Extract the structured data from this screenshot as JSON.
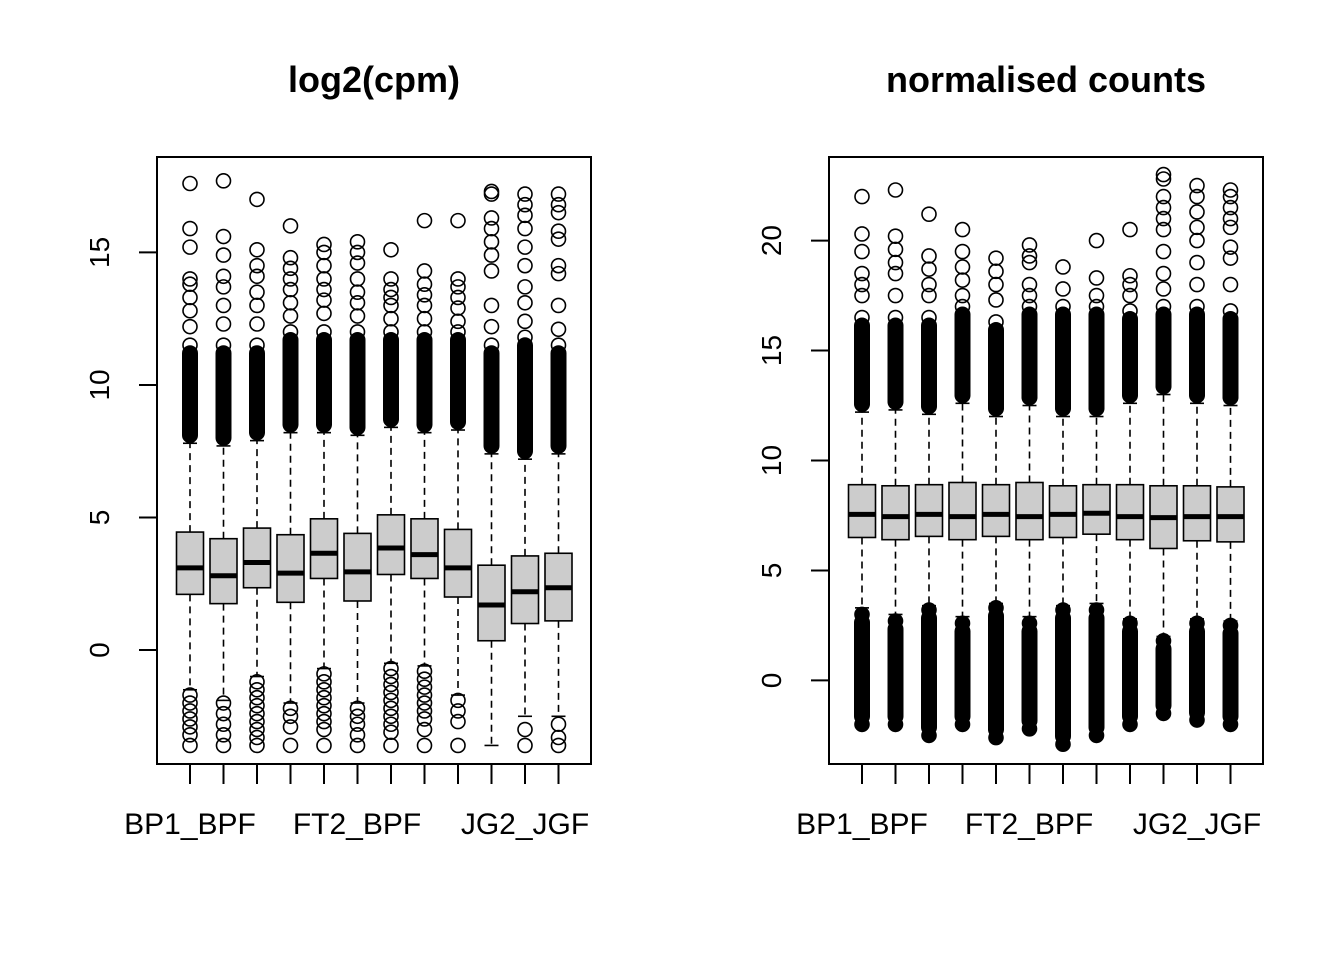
{
  "chart_data": [
    {
      "type": "boxplot",
      "title": "log2(cpm)",
      "xlabel": "",
      "ylabel": "",
      "ylim": [
        -4.3,
        18.6
      ],
      "yticks": [
        0,
        5,
        10,
        15
      ],
      "categories_shown": [
        "BP1_BPF",
        "FT2_BPF",
        "JG2_JGF"
      ],
      "n_boxes": 12,
      "boxes": [
        {
          "lower_whisker": -1.5,
          "q1": 2.1,
          "median": 3.1,
          "q3": 4.45,
          "upper_whisker": 7.8,
          "outliers_high": [
            8.5,
            9.5,
            10.5,
            11.5,
            12.2,
            12.8,
            13.3,
            13.8,
            14.0,
            15.2,
            15.9,
            17.6
          ],
          "outliers_low": [
            -1.7,
            -2.0,
            -2.3,
            -2.6,
            -2.9,
            -3.2,
            -3.6
          ]
        },
        {
          "lower_whisker": -1.9,
          "q1": 1.75,
          "median": 2.8,
          "q3": 4.2,
          "upper_whisker": 7.7,
          "outliers_high": [
            8.5,
            9.5,
            10.5,
            11.5,
            12.3,
            13.0,
            13.7,
            14.1,
            14.9,
            15.6,
            17.7
          ],
          "outliers_low": [
            -2.0,
            -2.4,
            -2.8,
            -3.2,
            -3.6
          ]
        },
        {
          "lower_whisker": -1.0,
          "q1": 2.35,
          "median": 3.3,
          "q3": 4.6,
          "upper_whisker": 7.9,
          "outliers_high": [
            8.5,
            9.5,
            10.5,
            11.5,
            12.3,
            13.0,
            13.5,
            14.1,
            14.5,
            15.1,
            17.0
          ],
          "outliers_low": [
            -1.2,
            -1.5,
            -1.8,
            -2.1,
            -2.4,
            -2.7,
            -3.0,
            -3.3,
            -3.6
          ]
        },
        {
          "lower_whisker": -2.0,
          "q1": 1.8,
          "median": 2.9,
          "q3": 4.35,
          "upper_whisker": 8.2,
          "outliers_high": [
            9.0,
            10.0,
            11.0,
            12.0,
            12.6,
            13.1,
            13.6,
            14.0,
            14.4,
            14.8,
            16.0
          ],
          "outliers_low": [
            -2.2,
            -2.5,
            -2.9,
            -3.6
          ]
        },
        {
          "lower_whisker": -0.7,
          "q1": 2.7,
          "median": 3.65,
          "q3": 4.95,
          "upper_whisker": 8.2,
          "outliers_high": [
            9.0,
            10.0,
            11.0,
            12.0,
            12.7,
            13.2,
            13.6,
            14.0,
            14.5,
            15.0,
            15.3
          ],
          "outliers_low": [
            -0.9,
            -1.2,
            -1.5,
            -1.8,
            -2.1,
            -2.4,
            -2.7,
            -3.0,
            -3.6
          ]
        },
        {
          "lower_whisker": -2.0,
          "q1": 1.85,
          "median": 2.95,
          "q3": 4.4,
          "upper_whisker": 8.1,
          "outliers_high": [
            9.0,
            10.0,
            11.0,
            12.0,
            12.6,
            13.1,
            13.5,
            14.0,
            14.6,
            15.0,
            15.4
          ],
          "outliers_low": [
            -2.2,
            -2.5,
            -2.8,
            -3.2,
            -3.6
          ]
        },
        {
          "lower_whisker": -0.5,
          "q1": 2.85,
          "median": 3.85,
          "q3": 5.1,
          "upper_whisker": 8.4,
          "outliers_high": [
            9.0,
            10.0,
            11.0,
            12.0,
            12.5,
            13.0,
            13.3,
            13.6,
            14.0,
            15.1
          ],
          "outliers_low": [
            -0.7,
            -1.0,
            -1.3,
            -1.6,
            -1.9,
            -2.2,
            -2.5,
            -2.8,
            -3.1,
            -3.6
          ]
        },
        {
          "lower_whisker": -0.6,
          "q1": 2.7,
          "median": 3.6,
          "q3": 4.95,
          "upper_whisker": 8.2,
          "outliers_high": [
            9.0,
            10.0,
            11.0,
            12.0,
            12.5,
            13.0,
            13.4,
            13.8,
            14.3,
            16.2
          ],
          "outliers_low": [
            -0.8,
            -1.1,
            -1.4,
            -1.7,
            -2.0,
            -2.3,
            -2.6,
            -3.0,
            -3.6
          ]
        },
        {
          "lower_whisker": -1.7,
          "q1": 2.0,
          "median": 3.1,
          "q3": 4.55,
          "upper_whisker": 8.3,
          "outliers_high": [
            9.0,
            10.0,
            11.0,
            12.0,
            12.4,
            12.9,
            13.3,
            13.7,
            14.0,
            16.2
          ],
          "outliers_low": [
            -1.9,
            -2.3,
            -2.7,
            -3.6
          ]
        },
        {
          "lower_whisker": -3.6,
          "q1": 0.35,
          "median": 1.7,
          "q3": 3.2,
          "upper_whisker": 7.4,
          "outliers_high": [
            8.0,
            9.0,
            10.0,
            11.0,
            11.5,
            12.2,
            13.0,
            14.3,
            14.9,
            15.4,
            15.9,
            16.3,
            17.2,
            17.3
          ],
          "outliers_low": []
        },
        {
          "lower_whisker": -2.5,
          "q1": 1.0,
          "median": 2.2,
          "q3": 3.55,
          "upper_whisker": 7.2,
          "outliers_high": [
            8.0,
            9.0,
            10.0,
            11.0,
            11.8,
            12.4,
            13.1,
            13.7,
            14.5,
            15.2,
            15.9,
            16.4,
            16.8,
            17.2
          ],
          "outliers_low": [
            -3.0,
            -3.6
          ]
        },
        {
          "lower_whisker": -2.5,
          "q1": 1.1,
          "median": 2.35,
          "q3": 3.65,
          "upper_whisker": 7.4,
          "outliers_high": [
            8.0,
            9.0,
            10.0,
            11.0,
            11.5,
            12.1,
            13.0,
            14.2,
            14.5,
            15.5,
            15.8,
            16.5,
            16.8,
            17.2
          ],
          "outliers_low": [
            -2.8,
            -3.3,
            -3.6
          ]
        }
      ]
    },
    {
      "type": "boxplot",
      "title": "normalised counts",
      "xlabel": "",
      "ylabel": "",
      "ylim": [
        -3.8,
        23.8
      ],
      "yticks": [
        0,
        5,
        10,
        15,
        20
      ],
      "categories_shown": [
        "BP1_BPF",
        "FT2_BPF",
        "JG2_JGF"
      ],
      "n_boxes": 12,
      "boxes": [
        {
          "lower_whisker": 3.3,
          "q1": 6.5,
          "median": 7.55,
          "q3": 8.9,
          "upper_whisker": 12.2,
          "outliers_high": [
            12.6,
            13.5,
            14.5,
            15.5,
            16.5,
            17.5,
            18.0,
            18.5,
            19.5,
            20.3,
            22.0
          ],
          "outliers_low": [
            3.0,
            2.0,
            1.0,
            0.0,
            -1.0,
            -2.0
          ]
        },
        {
          "lower_whisker": 3.0,
          "q1": 6.4,
          "median": 7.45,
          "q3": 8.85,
          "upper_whisker": 12.3,
          "outliers_high": [
            12.7,
            13.5,
            14.5,
            15.5,
            16.5,
            17.5,
            18.5,
            19.0,
            19.6,
            20.2,
            22.3
          ],
          "outliers_low": [
            2.7,
            1.5,
            0.5,
            -0.5,
            -1.5,
            -2.0
          ]
        },
        {
          "lower_whisker": 3.4,
          "q1": 6.55,
          "median": 7.55,
          "q3": 8.9,
          "upper_whisker": 12.1,
          "outliers_high": [
            12.5,
            13.5,
            14.5,
            15.5,
            16.5,
            17.5,
            18.0,
            18.7,
            19.3,
            21.2
          ],
          "outliers_low": [
            3.2,
            2.0,
            1.0,
            0.0,
            -1.0,
            -2.0,
            -2.5
          ]
        },
        {
          "lower_whisker": 2.9,
          "q1": 6.4,
          "median": 7.45,
          "q3": 9.0,
          "upper_whisker": 12.6,
          "outliers_high": [
            13.0,
            14.0,
            15.0,
            16.0,
            17.0,
            17.5,
            18.2,
            18.8,
            19.5,
            20.5
          ],
          "outliers_low": [
            2.6,
            1.5,
            0.5,
            -0.5,
            -1.5,
            -2.0
          ]
        },
        {
          "lower_whisker": 3.5,
          "q1": 6.55,
          "median": 7.55,
          "q3": 8.9,
          "upper_whisker": 12.0,
          "outliers_high": [
            12.4,
            13.3,
            14.3,
            15.3,
            16.3,
            17.3,
            18.0,
            18.6,
            19.2
          ],
          "outliers_low": [
            3.3,
            2.0,
            1.0,
            0.0,
            -1.0,
            -2.0,
            -2.6
          ]
        },
        {
          "lower_whisker": 2.9,
          "q1": 6.4,
          "median": 7.45,
          "q3": 9.0,
          "upper_whisker": 12.5,
          "outliers_high": [
            12.9,
            14.0,
            15.0,
            16.0,
            17.0,
            17.5,
            18.0,
            19.0,
            19.3,
            19.8
          ],
          "outliers_low": [
            2.6,
            1.5,
            0.5,
            -0.5,
            -1.5,
            -2.2
          ]
        },
        {
          "lower_whisker": 3.4,
          "q1": 6.5,
          "median": 7.55,
          "q3": 8.85,
          "upper_whisker": 12.0,
          "outliers_high": [
            12.4,
            13.3,
            14.3,
            15.3,
            16.3,
            17.0,
            17.8,
            18.8
          ],
          "outliers_low": [
            3.2,
            2.0,
            1.0,
            0.0,
            -1.0,
            -2.0,
            -2.9
          ]
        },
        {
          "lower_whisker": 3.5,
          "q1": 6.65,
          "median": 7.6,
          "q3": 8.9,
          "upper_whisker": 12.0,
          "outliers_high": [
            12.4,
            13.3,
            14.3,
            15.3,
            16.3,
            17.0,
            17.5,
            18.3,
            20.0
          ],
          "outliers_low": [
            3.2,
            2.0,
            1.0,
            0.0,
            -1.0,
            -2.0,
            -2.5
          ]
        },
        {
          "lower_whisker": 2.8,
          "q1": 6.4,
          "median": 7.45,
          "q3": 8.9,
          "upper_whisker": 12.6,
          "outliers_high": [
            13.0,
            14.0,
            15.0,
            16.0,
            16.8,
            17.5,
            18.0,
            18.4,
            20.5
          ],
          "outliers_low": [
            2.6,
            1.5,
            0.5,
            -0.5,
            -1.5,
            -2.0
          ]
        },
        {
          "lower_whisker": 2.0,
          "q1": 6.0,
          "median": 7.4,
          "q3": 8.85,
          "upper_whisker": 13.0,
          "outliers_high": [
            13.4,
            14.3,
            15.3,
            16.3,
            17.0,
            17.8,
            18.5,
            19.5,
            20.5,
            21.0,
            21.5,
            22.0,
            22.8,
            23.0
          ],
          "outliers_low": [
            1.8,
            1.0,
            0.0,
            -0.8,
            -1.5
          ]
        },
        {
          "lower_whisker": 2.8,
          "q1": 6.35,
          "median": 7.45,
          "q3": 8.85,
          "upper_whisker": 12.6,
          "outliers_high": [
            13.0,
            14.0,
            15.0,
            16.0,
            17.0,
            18.0,
            19.0,
            20.0,
            20.6,
            21.3,
            22.0,
            22.5
          ],
          "outliers_low": [
            2.6,
            1.5,
            0.5,
            -0.5,
            -1.5,
            -1.8
          ]
        },
        {
          "lower_whisker": 2.7,
          "q1": 6.3,
          "median": 7.45,
          "q3": 8.8,
          "upper_whisker": 12.5,
          "outliers_high": [
            12.9,
            14.0,
            15.0,
            16.0,
            16.8,
            18.0,
            19.2,
            19.7,
            20.6,
            21.0,
            21.5,
            22.0,
            22.3
          ],
          "outliers_low": [
            2.5,
            1.5,
            0.5,
            -0.5,
            -1.5,
            -2.0
          ]
        }
      ]
    }
  ]
}
